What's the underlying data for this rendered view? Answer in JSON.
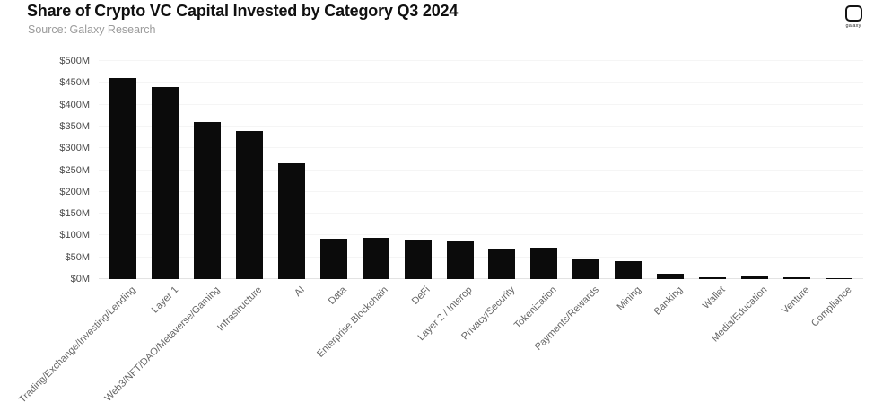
{
  "header": {
    "title": "Share of Crypto VC Capital Invested by Category Q3 2024",
    "source": "Source: Galaxy Research",
    "logo_text": "galaxy"
  },
  "chart_data": {
    "type": "bar",
    "title": "Share of Crypto VC Capital Invested by Category Q3 2024",
    "subtitle": "Source: Galaxy Research",
    "categories": [
      "Trading/Exchange/Investing/Lending",
      "Layer 1",
      "Web3/NFT/DAO/Metaverse/Gaming",
      "Infrastructure",
      "AI",
      "Data",
      "Enterprise Blockchain",
      "DeFi",
      "Layer 2 / Interop",
      "Privacy/Security",
      "Tokenization",
      "Payments/Rewards",
      "Mining",
      "Banking",
      "Wallet",
      "Media/Education",
      "Venture",
      "Compliance"
    ],
    "values": [
      460,
      440,
      360,
      340,
      265,
      93,
      95,
      88,
      87,
      70,
      73,
      46,
      41,
      12,
      5,
      7,
      5,
      2
    ],
    "xlabel": "",
    "ylabel": "",
    "ylim": [
      0,
      500
    ],
    "y_ticks": [
      "$0M",
      "$50M",
      "$100M",
      "$150M",
      "$200M",
      "$250M",
      "$300M",
      "$350M",
      "$400M",
      "$450M",
      "$500M"
    ],
    "grid": true,
    "legend": "none",
    "bar_color": "#0b0b0b",
    "x_label_rotation_deg": -45
  }
}
